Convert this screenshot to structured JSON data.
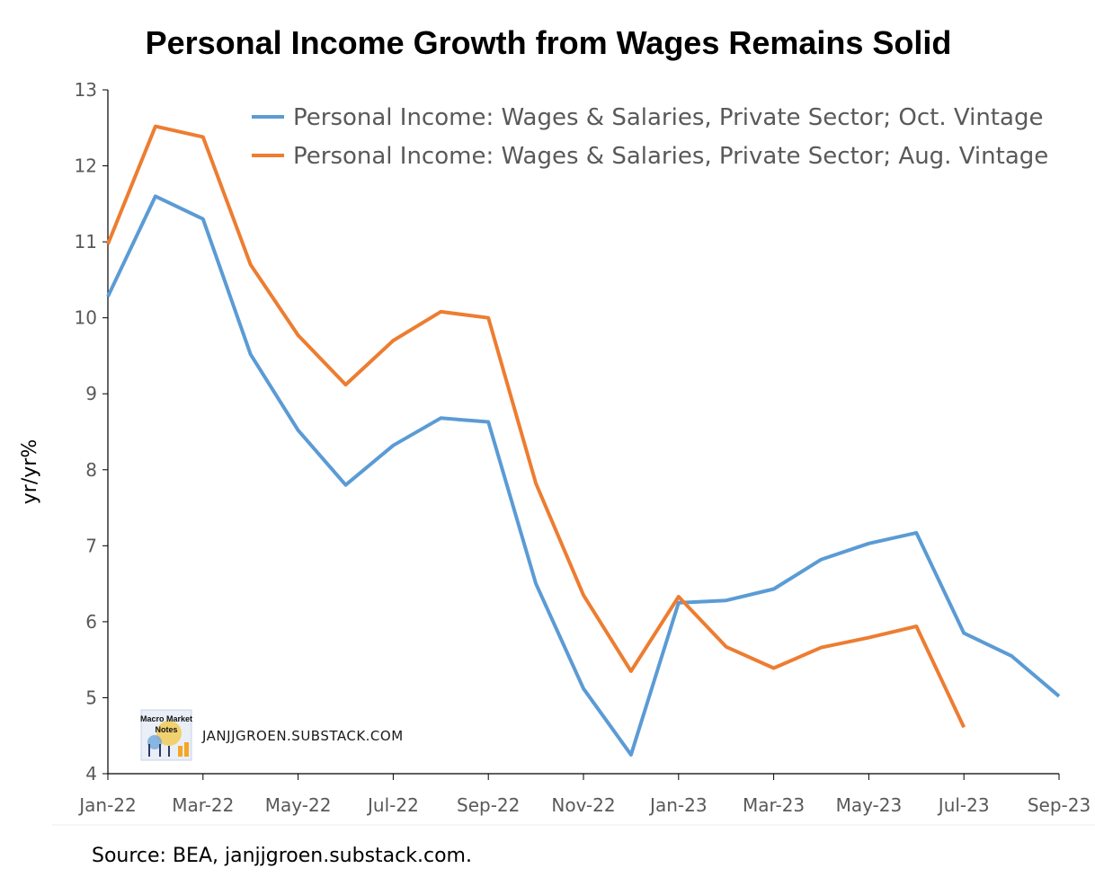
{
  "chart_data": {
    "type": "line",
    "title": "Personal Income Growth from Wages Remains Solid",
    "ylabel": "yr/yr%",
    "xlabel": "",
    "ylim": [
      4,
      13
    ],
    "yticks": [
      4,
      5,
      6,
      7,
      8,
      9,
      10,
      11,
      12,
      13
    ],
    "x": [
      "Jan-22",
      "Feb-22",
      "Mar-22",
      "Apr-22",
      "May-22",
      "Jun-22",
      "Jul-22",
      "Aug-22",
      "Sep-22",
      "Oct-22",
      "Nov-22",
      "Dec-22",
      "Jan-23",
      "Feb-23",
      "Mar-23",
      "Apr-23",
      "May-23",
      "Jun-23",
      "Jul-23",
      "Aug-23",
      "Sep-23"
    ],
    "xtick_labels": [
      "Jan-22",
      "Mar-22",
      "May-22",
      "Jul-22",
      "Sep-22",
      "Nov-22",
      "Jan-23",
      "Mar-23",
      "May-23",
      "Jul-23",
      "Sep-23"
    ],
    "grid": false,
    "legend_position": "top-right",
    "series": [
      {
        "name": "Personal Income: Wages & Salaries, Private Sector; Oct. Vintage",
        "color": "#5b9bd5",
        "values": [
          10.28,
          11.6,
          11.3,
          9.52,
          8.52,
          7.8,
          8.32,
          8.68,
          8.63,
          6.5,
          5.12,
          4.25,
          6.25,
          6.28,
          6.43,
          6.82,
          7.03,
          7.17,
          5.85,
          5.55,
          5.02
        ]
      },
      {
        "name": "Personal Income: Wages & Salaries, Private Sector; Aug. Vintage",
        "color": "#ed7d31",
        "values": [
          10.97,
          12.52,
          12.38,
          10.7,
          9.77,
          9.12,
          9.7,
          10.08,
          10.0,
          7.82,
          6.35,
          5.35,
          6.33,
          5.67,
          5.39,
          5.66,
          5.79,
          5.94,
          4.61,
          null,
          null
        ]
      }
    ]
  },
  "watermark": {
    "text": "JANJJGROEN.SUBSTACK.COM",
    "logo_line1": "Macro Market",
    "logo_line2": "Notes"
  },
  "source": "Source: BEA, janjjgroen.substack.com."
}
